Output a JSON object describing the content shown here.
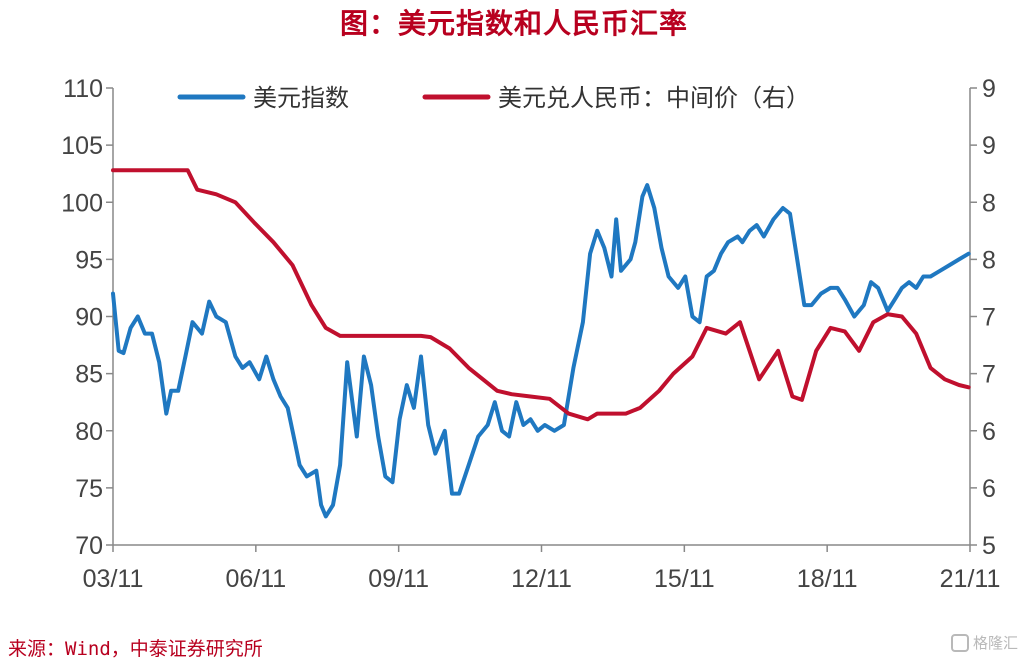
{
  "title": "图：美元指数和人民币汇率",
  "source": "来源：Wind，中泰证券研究所",
  "watermark": "格隆汇",
  "chart_data": {
    "type": "line",
    "x_ticks": [
      "03/11",
      "06/11",
      "09/11",
      "12/11",
      "15/11",
      "18/11",
      "21/11"
    ],
    "x_range": [
      2003.83,
      2021.83
    ],
    "left_axis": {
      "ylim": [
        70,
        110
      ],
      "ticks": [
        "70",
        "75",
        "80",
        "85",
        "90",
        "95",
        "100",
        "105",
        "110"
      ]
    },
    "right_axis": {
      "ylim": [
        5,
        9
      ],
      "ticks": [
        "5",
        "6",
        "6",
        "7",
        "7",
        "8",
        "8",
        "9",
        "9"
      ]
    },
    "legend_position": "top",
    "grid": false,
    "colors": {
      "dxy": "#1f78c1",
      "cny": "#c0102e",
      "axis": "#888888"
    },
    "series": [
      {
        "name": "美元指数",
        "axis": "left",
        "x": [
          2003.83,
          2003.95,
          2004.05,
          2004.2,
          2004.35,
          2004.5,
          2004.65,
          2004.8,
          2004.95,
          2005.05,
          2005.2,
          2005.35,
          2005.5,
          2005.7,
          2005.85,
          2006.0,
          2006.2,
          2006.4,
          2006.55,
          2006.7,
          2006.9,
          2007.05,
          2007.2,
          2007.35,
          2007.5,
          2007.65,
          2007.75,
          2007.9,
          2008.1,
          2008.2,
          2008.3,
          2008.45,
          2008.6,
          2008.75,
          2008.95,
          2009.1,
          2009.25,
          2009.4,
          2009.55,
          2009.7,
          2009.85,
          2010.0,
          2010.15,
          2010.3,
          2010.45,
          2010.6,
          2010.8,
          2010.95,
          2011.1,
          2011.3,
          2011.5,
          2011.7,
          2011.85,
          2012.0,
          2012.15,
          2012.3,
          2012.45,
          2012.6,
          2012.75,
          2012.9,
          2013.1,
          2013.3,
          2013.5,
          2013.7,
          2013.85,
          2014.0,
          2014.15,
          2014.3,
          2014.4,
          2014.5,
          2014.6,
          2014.7,
          2014.8,
          2014.95,
          2015.05,
          2015.2,
          2015.35,
          2015.5,
          2015.7,
          2015.85,
          2016.0,
          2016.15,
          2016.3,
          2016.45,
          2016.6,
          2016.75,
          2016.95,
          2017.05,
          2017.2,
          2017.35,
          2017.5,
          2017.7,
          2017.9,
          2018.05,
          2018.2,
          2018.35,
          2018.5,
          2018.7,
          2018.9,
          2019.05,
          2019.2,
          2019.4,
          2019.6,
          2019.75,
          2019.9,
          2020.1,
          2020.25,
          2020.4,
          2020.55,
          2020.7,
          2020.85,
          2021.0,
          2021.2,
          2021.4,
          2021.6,
          2021.8
        ],
        "values": [
          92.0,
          87.0,
          86.8,
          89.0,
          90.0,
          88.5,
          88.5,
          86.0,
          81.5,
          83.5,
          83.5,
          86.5,
          89.5,
          88.5,
          91.3,
          90.0,
          89.5,
          86.5,
          85.5,
          86.0,
          84.5,
          86.5,
          84.5,
          83.0,
          82.0,
          79.0,
          77.0,
          76.0,
          76.5,
          73.5,
          72.5,
          73.5,
          77.0,
          86.0,
          79.5,
          86.5,
          84.0,
          79.5,
          76.0,
          75.5,
          81.0,
          84.0,
          82.0,
          86.5,
          80.5,
          78.0,
          80.0,
          74.5,
          74.5,
          77.0,
          79.5,
          80.5,
          82.5,
          80.0,
          79.5,
          82.5,
          80.5,
          81.0,
          80.0,
          80.5,
          80.0,
          80.5,
          85.5,
          89.5,
          95.5,
          97.5,
          96.0,
          93.5,
          98.5,
          94.0,
          94.5,
          95.0,
          96.5,
          100.5,
          101.5,
          99.5,
          96.0,
          93.5,
          92.5,
          93.5,
          90.0,
          89.5,
          93.5,
          94.0,
          95.5,
          96.5,
          97.0,
          96.5,
          97.5,
          98.0,
          97.0,
          98.5,
          99.5,
          99.0,
          95.0,
          91.0,
          91.0,
          92.0,
          92.5,
          92.5,
          91.5,
          90.0,
          91.0,
          93.0,
          92.5,
          90.5,
          91.5,
          92.5,
          93.0,
          92.5,
          93.5,
          93.5,
          94.0,
          94.5,
          95.0,
          95.5
        ]
      },
      {
        "name": "美元兑人民币：中间价（右）",
        "axis": "right",
        "x": [
          2003.83,
          2005.4,
          2005.6,
          2006.0,
          2006.4,
          2006.8,
          2007.2,
          2007.6,
          2008.0,
          2008.3,
          2008.6,
          2009.5,
          2010.3,
          2010.5,
          2010.9,
          2011.3,
          2011.6,
          2011.9,
          2012.2,
          2012.6,
          2013.0,
          2013.4,
          2013.8,
          2014.0,
          2014.3,
          2014.6,
          2014.9,
          2015.3,
          2015.6,
          2016.0,
          2016.3,
          2016.7,
          2017.0,
          2017.4,
          2017.8,
          2018.1,
          2018.3,
          2018.6,
          2018.9,
          2019.2,
          2019.5,
          2019.8,
          2020.1,
          2020.4,
          2020.7,
          2021.0,
          2021.3,
          2021.6,
          2021.8
        ],
        "values": [
          8.28,
          8.28,
          8.11,
          8.07,
          8.0,
          7.82,
          7.65,
          7.45,
          7.1,
          6.9,
          6.83,
          6.83,
          6.83,
          6.82,
          6.72,
          6.55,
          6.45,
          6.35,
          6.32,
          6.3,
          6.28,
          6.15,
          6.1,
          6.15,
          6.15,
          6.15,
          6.2,
          6.35,
          6.5,
          6.65,
          6.9,
          6.85,
          6.95,
          6.45,
          6.7,
          6.3,
          6.27,
          6.7,
          6.9,
          6.87,
          6.7,
          6.95,
          7.02,
          7.0,
          6.85,
          6.55,
          6.45,
          6.4,
          6.38
        ]
      }
    ]
  }
}
